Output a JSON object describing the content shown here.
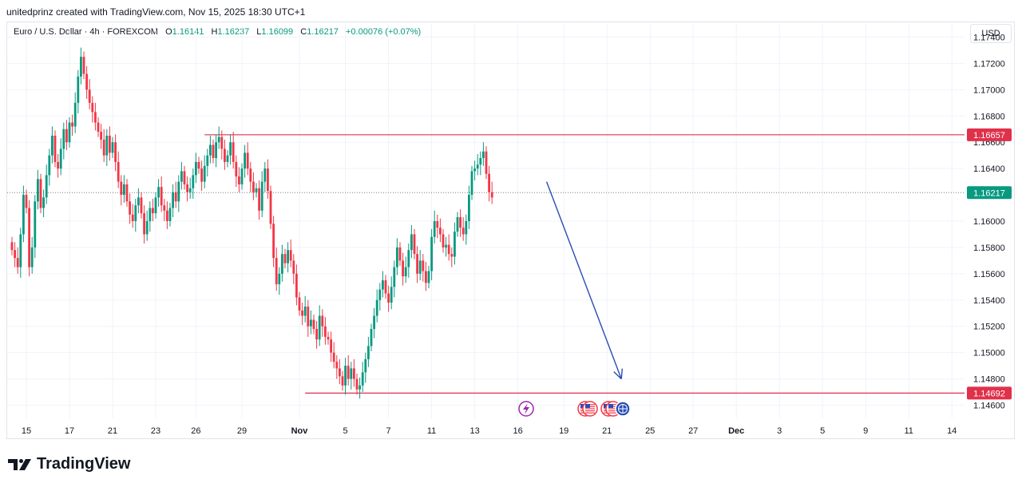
{
  "header": {
    "caption": "unitedprinz created with TradingView.com, Nov 15, 2025 18:30 UTC+1"
  },
  "legend": {
    "symbol": "Euro / U.S. Dollar · 4h · FOREXCOM",
    "o_label": "O",
    "o": "1.16141",
    "h_label": "H",
    "h": "1.16237",
    "l_label": "L",
    "l": "1.16099",
    "c_label": "C",
    "c": "1.16217",
    "change": "+0.00076 (+0.07%)"
  },
  "currency_button": "USD",
  "brand": {
    "name": "TradingView"
  },
  "colors": {
    "up": "#089981",
    "down": "#f23645",
    "level": "#e0314b",
    "arrow": "#2a4cb5",
    "grid": "#f0f3fa",
    "axis_text": "#131722"
  },
  "icons": {
    "event_left": "lightning-icon",
    "events_right": [
      "us-flag-icon",
      "us-flag-icon",
      "us-flag-icon",
      "globe-icon"
    ]
  },
  "chart_data": {
    "type": "candlestick",
    "symbol": "EURUSD",
    "timeframe": "4h",
    "ylim": [
      1.145,
      1.175
    ],
    "y_ticks": [
      "1.17400",
      "1.17200",
      "1.17000",
      "1.16800",
      "1.16600",
      "1.16400",
      "1.16000",
      "1.15800",
      "1.15600",
      "1.15400",
      "1.15200",
      "1.15000",
      "1.14800",
      "1.14600"
    ],
    "y_tick_values": [
      1.174,
      1.172,
      1.17,
      1.168,
      1.166,
      1.164,
      1.16,
      1.158,
      1.156,
      1.154,
      1.152,
      1.15,
      1.148,
      1.146
    ],
    "x_ticks": [
      "15",
      "17",
      "21",
      "23",
      "26",
      "29",
      "Nov",
      "5",
      "7",
      "11",
      "13",
      "16",
      "19",
      "21",
      "25",
      "27",
      "Dec",
      "3",
      "5",
      "9",
      "11",
      "14"
    ],
    "x_tick_bars": [
      5,
      20,
      35,
      50,
      64,
      80,
      100,
      116,
      131,
      146,
      161,
      176,
      192,
      207,
      222,
      237,
      252,
      267,
      282,
      297,
      312,
      327
    ],
    "current_price": 1.16217,
    "current_price_label": "1.16217",
    "resistance": {
      "price": 1.16657,
      "label": "1.16657",
      "from_bar": 67
    },
    "support": {
      "price": 1.14692,
      "label": "1.14692",
      "from_bar": 102
    },
    "projection": {
      "from": {
        "bar": 186,
        "price": 1.163
      },
      "to": {
        "bar": 212,
        "price": 1.148
      }
    },
    "closes": [
      1.1578,
      1.1572,
      1.1565,
      1.159,
      1.162,
      1.161,
      1.1565,
      1.158,
      1.1615,
      1.1632,
      1.161,
      1.1618,
      1.1635,
      1.165,
      1.1665,
      1.1645,
      1.164,
      1.1655,
      1.167,
      1.166,
      1.1675,
      1.1672,
      1.169,
      1.171,
      1.1725,
      1.1712,
      1.17,
      1.169,
      1.1683,
      1.1675,
      1.1668,
      1.1662,
      1.165,
      1.1665,
      1.1652,
      1.166,
      1.1645,
      1.163,
      1.162,
      1.1628,
      1.1615,
      1.1605,
      1.16,
      1.1612,
      1.1618,
      1.1606,
      1.159,
      1.16,
      1.161,
      1.1606,
      1.1618,
      1.1626,
      1.1612,
      1.1608,
      1.16,
      1.161,
      1.1622,
      1.1615,
      1.163,
      1.1638,
      1.1628,
      1.1622,
      1.1625,
      1.1635,
      1.1645,
      1.164,
      1.163,
      1.1642,
      1.165,
      1.1658,
      1.1648,
      1.166,
      1.1664,
      1.1655,
      1.1645,
      1.165,
      1.166,
      1.1645,
      1.1634,
      1.1628,
      1.164,
      1.1652,
      1.164,
      1.163,
      1.1622,
      1.1625,
      1.1608,
      1.163,
      1.164,
      1.1623,
      1.1598,
      1.1572,
      1.1552,
      1.156,
      1.1575,
      1.1568,
      1.1578,
      1.157,
      1.156,
      1.1542,
      1.1532,
      1.1528,
      1.1535,
      1.152,
      1.1525,
      1.1518,
      1.151,
      1.1528,
      1.152,
      1.1512,
      1.151,
      1.15,
      1.1493,
      1.1488,
      1.1482,
      1.1475,
      1.149,
      1.148,
      1.1488,
      1.148,
      1.1472,
      1.1475,
      1.1485,
      1.1495,
      1.1505,
      1.1518,
      1.1528,
      1.154,
      1.1548,
      1.1555,
      1.1545,
      1.1538,
      1.155,
      1.1565,
      1.158,
      1.157,
      1.1558,
      1.1565,
      1.1578,
      1.159,
      1.1575,
      1.156,
      1.157,
      1.1562,
      1.1553,
      1.1562,
      1.1588,
      1.16,
      1.1595,
      1.159,
      1.158,
      1.1582,
      1.1575,
      1.1573,
      1.1592,
      1.1603,
      1.1595,
      1.159,
      1.16,
      1.162,
      1.1638,
      1.164,
      1.1643,
      1.1648,
      1.1653,
      1.1636,
      1.1622,
      1.1618
    ]
  }
}
